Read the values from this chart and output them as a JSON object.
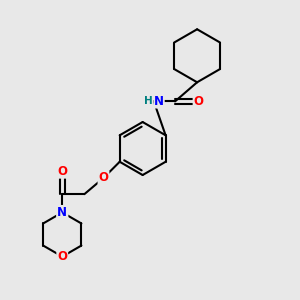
{
  "background_color": "#e8e8e8",
  "bond_color": "#000000",
  "bond_width": 1.5,
  "atom_colors": {
    "N": "#0000ff",
    "O": "#ff0000",
    "H": "#008080",
    "C": "#000000"
  },
  "font_size": 8.5,
  "fig_width": 3.0,
  "fig_height": 3.0,
  "dpi": 100,
  "xlim": [
    0,
    10
  ],
  "ylim": [
    0,
    10
  ]
}
